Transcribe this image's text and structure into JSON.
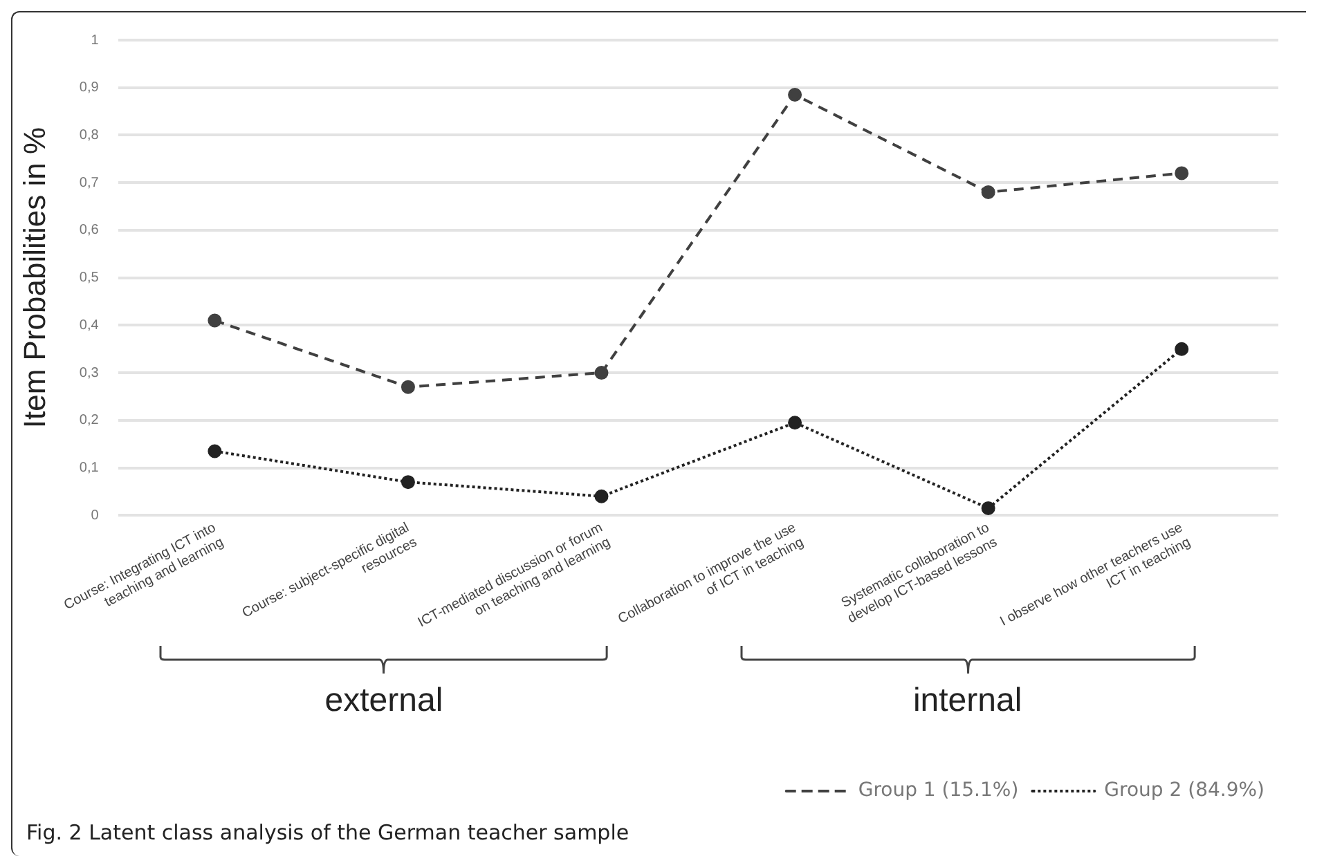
{
  "chart_data": {
    "type": "line",
    "ylabel": "Item Probabilities in %",
    "categories": [
      "Course: Integrating ICT into teaching and learning",
      "Course: subject-specific digital resources",
      "ICT-mediated discussion or forum on teaching and learning",
      "Collaboration to improve the use of ICT in teaching",
      "Systematic collaboration to develop ICT-based lessons",
      "I observe how other teachers use ICT in teaching"
    ],
    "series": [
      {
        "name": "Group 1 (15.1%)",
        "color": "#404040",
        "line_style": "dashed",
        "values": [
          0.41,
          0.27,
          0.3,
          0.885,
          0.68,
          0.72
        ]
      },
      {
        "name": "Group 2 (84.9%)",
        "color": "#222222",
        "line_style": "dotted",
        "values": [
          0.135,
          0.07,
          0.04,
          0.195,
          0.015,
          0.35
        ]
      }
    ],
    "ylim": [
      0,
      1
    ],
    "yticks": [
      0,
      {
        "value": 0.1,
        "label": "0,1"
      },
      {
        "value": 0.2,
        "label": "0,2"
      },
      {
        "value": 0.3,
        "label": "0,3"
      },
      {
        "value": 0.4,
        "label": "0,4"
      },
      {
        "value": 0.5,
        "label": "0,5"
      },
      {
        "value": 0.6,
        "label": "0,6"
      },
      {
        "value": 0.7,
        "label": "0,7"
      },
      {
        "value": 0.8,
        "label": "0,8"
      },
      {
        "value": 0.9,
        "label": "0,9"
      },
      1
    ],
    "grid": "y",
    "marker": "circle",
    "legend": "bottom right",
    "annotations": [
      "external",
      "internal",
      "Fig. 2  Latent class analysis of the German teacher sample"
    ]
  }
}
